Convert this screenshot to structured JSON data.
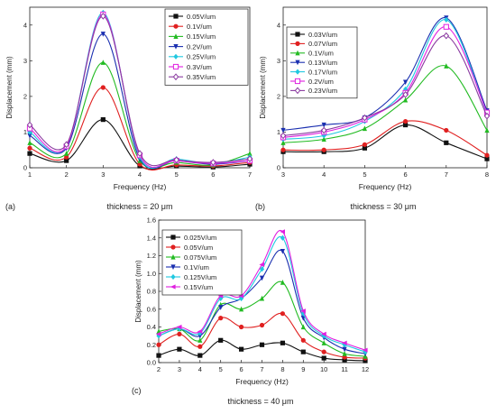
{
  "panels": [
    {
      "letter": "(a)",
      "caption": "thickness = 20 μm"
    },
    {
      "letter": "(b)",
      "caption": "thickness = 30 μm"
    },
    {
      "letter": "(c)",
      "caption": "thickness = 40 μm"
    }
  ],
  "chart_data": [
    {
      "type": "line",
      "xlabel": "Frequency (Hz)",
      "ylabel": "Displacement (mm)",
      "xlim": [
        1,
        7
      ],
      "ylim": [
        0,
        4.5
      ],
      "xticks": [
        1,
        2,
        3,
        4,
        5,
        6,
        7
      ],
      "yticks": [
        0,
        1,
        2,
        3,
        4
      ],
      "legend": "top-right",
      "x": [
        1,
        2,
        3,
        4,
        5,
        6,
        7
      ],
      "series": [
        {
          "name": "0.05V/um",
          "color": "#111111",
          "marker": "square",
          "values": [
            0.4,
            0.2,
            1.35,
            0.05,
            0.05,
            0.02,
            0.1
          ]
        },
        {
          "name": "0.1V/um",
          "color": "#e02020",
          "marker": "circle",
          "values": [
            0.55,
            0.3,
            2.25,
            0.1,
            0.08,
            0.05,
            0.15
          ]
        },
        {
          "name": "0.15V/um",
          "color": "#22bb22",
          "marker": "triangle-up",
          "values": [
            0.7,
            0.4,
            2.95,
            0.2,
            0.15,
            0.08,
            0.4
          ]
        },
        {
          "name": "0.2V/um",
          "color": "#1a2fb0",
          "marker": "triangle-down",
          "values": [
            0.9,
            0.55,
            3.75,
            0.25,
            0.2,
            0.1,
            0.2
          ]
        },
        {
          "name": "0.25V/um",
          "color": "#20c8e0",
          "marker": "diamond",
          "values": [
            1.0,
            0.6,
            4.35,
            0.3,
            0.25,
            0.12,
            0.3
          ]
        },
        {
          "name": "0.3V/um",
          "color": "#e020e0",
          "marker": "square-open",
          "values": [
            1.1,
            0.6,
            4.3,
            0.35,
            0.2,
            0.12,
            0.2
          ]
        },
        {
          "name": "0.35V/um",
          "color": "#8a3aa0",
          "marker": "diamond-open",
          "values": [
            1.2,
            0.65,
            4.25,
            0.4,
            0.22,
            0.15,
            0.25
          ]
        }
      ]
    },
    {
      "type": "line",
      "xlabel": "Frequency (Hz)",
      "ylabel": "Displacement (mm)",
      "xlim": [
        3,
        8
      ],
      "ylim": [
        0,
        4.5
      ],
      "xticks": [
        3,
        4,
        5,
        6,
        7,
        8
      ],
      "yticks": [
        0,
        1,
        2,
        3,
        4
      ],
      "legend": "top-left",
      "x": [
        3,
        4,
        5,
        6,
        7,
        8
      ],
      "series": [
        {
          "name": "0.03V/um",
          "color": "#111111",
          "marker": "square",
          "values": [
            0.45,
            0.45,
            0.55,
            1.2,
            0.7,
            0.25
          ]
        },
        {
          "name": "0.07V/um",
          "color": "#e02020",
          "marker": "circle",
          "values": [
            0.5,
            0.5,
            0.65,
            1.3,
            1.05,
            0.35
          ]
        },
        {
          "name": "0.1V/um",
          "color": "#22bb22",
          "marker": "triangle-up",
          "values": [
            0.7,
            0.8,
            1.1,
            1.9,
            2.85,
            1.05
          ]
        },
        {
          "name": "0.13V/um",
          "color": "#1a2fb0",
          "marker": "triangle-down",
          "values": [
            1.05,
            1.2,
            1.4,
            2.4,
            4.2,
            1.6
          ]
        },
        {
          "name": "0.17V/um",
          "color": "#20c8e0",
          "marker": "diamond",
          "values": [
            0.8,
            0.9,
            1.3,
            2.2,
            4.15,
            1.5
          ]
        },
        {
          "name": "0.2V/um",
          "color": "#e020e0",
          "marker": "square-open",
          "values": [
            0.85,
            1.0,
            1.35,
            2.1,
            3.95,
            1.55
          ]
        },
        {
          "name": "0.23V/um",
          "color": "#8a3aa0",
          "marker": "diamond-open",
          "values": [
            0.9,
            1.05,
            1.4,
            2.05,
            3.7,
            1.45
          ]
        }
      ]
    },
    {
      "type": "line",
      "xlabel": "Frequency (Hz)",
      "ylabel": "Displacement (mm)",
      "xlim": [
        2,
        12
      ],
      "ylim": [
        0,
        1.6
      ],
      "xticks": [
        2,
        3,
        4,
        5,
        6,
        7,
        8,
        9,
        10,
        11,
        12
      ],
      "yticks": [
        0.0,
        0.2,
        0.4,
        0.6,
        0.8,
        1.0,
        1.2,
        1.4,
        1.6
      ],
      "legend": "top-left",
      "x": [
        2,
        3,
        4,
        5,
        6,
        7,
        8,
        9,
        10,
        11,
        12
      ],
      "series": [
        {
          "name": "0.025V/um",
          "color": "#111111",
          "marker": "square",
          "values": [
            0.08,
            0.15,
            0.08,
            0.25,
            0.15,
            0.2,
            0.22,
            0.12,
            0.05,
            0.03,
            0.02
          ]
        },
        {
          "name": "0.05V/um",
          "color": "#e02020",
          "marker": "circle",
          "values": [
            0.2,
            0.32,
            0.18,
            0.5,
            0.4,
            0.42,
            0.55,
            0.25,
            0.12,
            0.06,
            0.05
          ]
        },
        {
          "name": "0.075V/um",
          "color": "#22bb22",
          "marker": "triangle-up",
          "values": [
            0.35,
            0.38,
            0.25,
            0.65,
            0.6,
            0.72,
            0.9,
            0.4,
            0.22,
            0.1,
            0.07
          ]
        },
        {
          "name": "0.1V/um",
          "color": "#1a2fb0",
          "marker": "triangle-down",
          "values": [
            0.3,
            0.38,
            0.3,
            0.62,
            0.72,
            0.95,
            1.25,
            0.5,
            0.28,
            0.15,
            0.1
          ]
        },
        {
          "name": "0.125V/um",
          "color": "#20c8e0",
          "marker": "diamond",
          "values": [
            0.3,
            0.38,
            0.33,
            0.72,
            0.72,
            1.05,
            1.4,
            0.55,
            0.3,
            0.2,
            0.12
          ]
        },
        {
          "name": "0.15V/um",
          "color": "#e020e0",
          "marker": "triangle-left",
          "values": [
            0.32,
            0.4,
            0.35,
            0.75,
            0.75,
            1.1,
            1.47,
            0.58,
            0.32,
            0.22,
            0.14
          ]
        }
      ]
    }
  ]
}
